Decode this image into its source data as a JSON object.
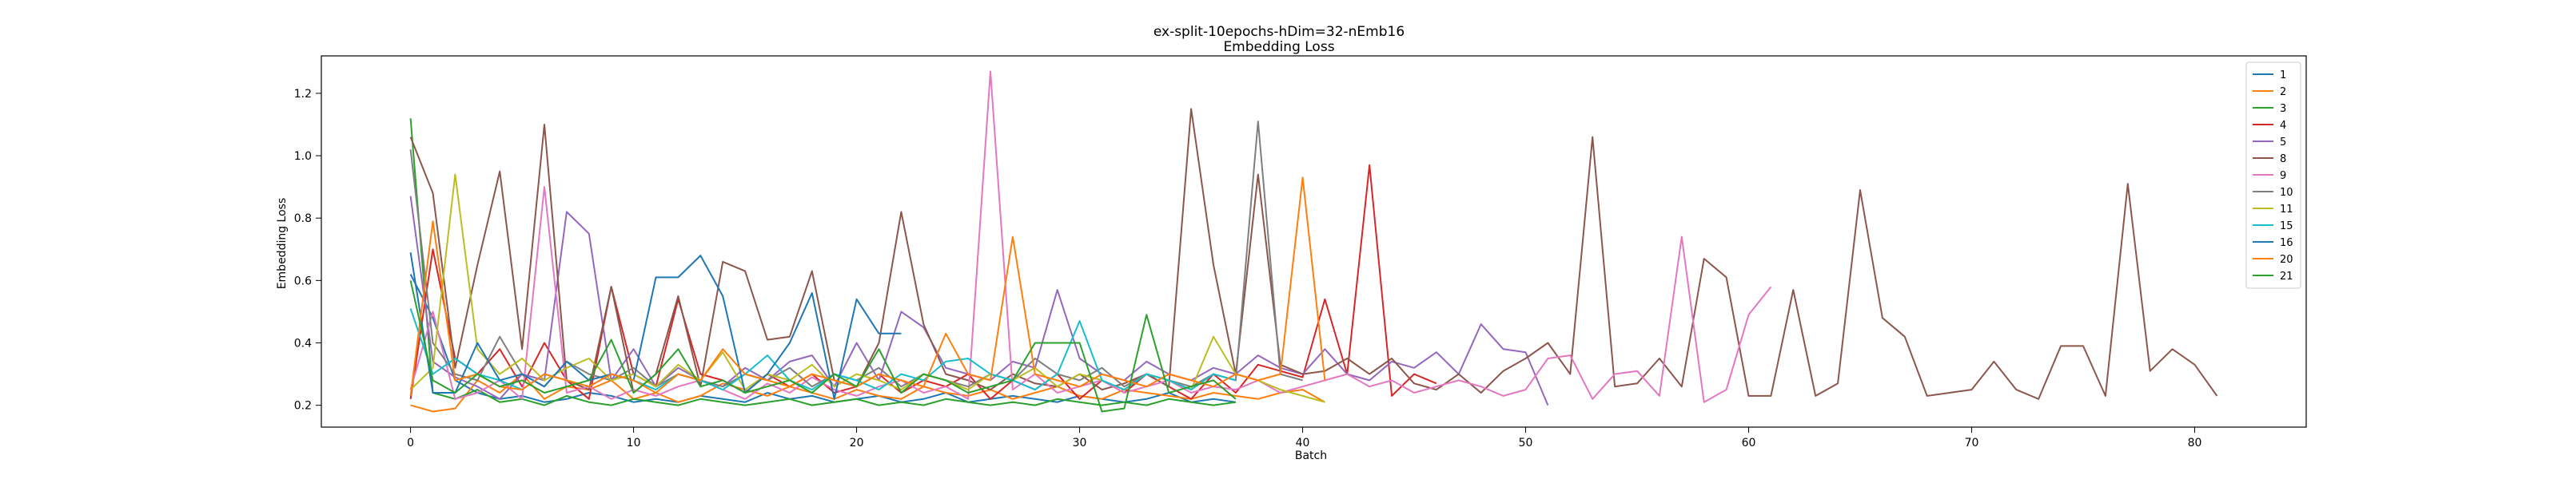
{
  "chart_data": {
    "type": "line",
    "title": "ex-split-10epochs-hDim=32-nEmb16",
    "subtitle": "Embedding Loss",
    "xlabel": "Batch",
    "ylabel": "Embedding Loss",
    "xlim": [
      -4,
      85
    ],
    "ylim": [
      0.13,
      1.32
    ],
    "xticks": [
      0,
      10,
      20,
      30,
      40,
      50,
      60,
      70,
      80
    ],
    "yticks": [
      0.2,
      0.4,
      0.6,
      0.8,
      1.0,
      1.2
    ],
    "ytick_labels": [
      "0.2",
      "0.4",
      "0.6",
      "0.8",
      "1.0",
      "1.2"
    ],
    "grid": false,
    "legend_position": "top-right",
    "series": [
      {
        "name": "1",
        "color": "#1f77b4",
        "values": [
          0.62,
          0.48,
          0.28,
          0.24,
          0.22,
          0.23,
          0.21,
          0.22,
          0.24,
          0.23,
          0.21,
          0.22,
          0.21,
          0.23,
          0.22,
          0.21,
          0.24,
          0.22,
          0.23,
          0.21,
          0.22,
          0.23,
          0.21,
          0.22,
          0.24,
          0.21,
          0.22,
          0.23,
          0.22,
          0.21,
          0.23,
          0.22,
          0.21,
          0.22,
          0.24,
          0.21,
          0.22,
          0.21
        ]
      },
      {
        "name": "2",
        "color": "#ff7f0e",
        "values": [
          0.2,
          0.18,
          0.19,
          0.28,
          0.24,
          0.3,
          0.22,
          0.26,
          0.25,
          0.28,
          0.22,
          0.24,
          0.21,
          0.23,
          0.27,
          0.25,
          0.23,
          0.26,
          0.24,
          0.22,
          0.25,
          0.23,
          0.22,
          0.26,
          0.24,
          0.23,
          0.25,
          0.22,
          0.24,
          0.26,
          0.23,
          0.22,
          0.25,
          0.24,
          0.23,
          0.22,
          0.24,
          0.23,
          0.22,
          0.24,
          0.25,
          0.21
        ]
      },
      {
        "name": "3",
        "color": "#2ca02c",
        "values": [
          1.12,
          0.24,
          0.22,
          0.25,
          0.21,
          0.22,
          0.2,
          0.23,
          0.21,
          0.2,
          0.22,
          0.21,
          0.2,
          0.22,
          0.21,
          0.2,
          0.21,
          0.22,
          0.2,
          0.21,
          0.22,
          0.2,
          0.21,
          0.2,
          0.22,
          0.21,
          0.2,
          0.21,
          0.2,
          0.22,
          0.21,
          0.2,
          0.21,
          0.2,
          0.22,
          0.21,
          0.2,
          0.21
        ]
      },
      {
        "name": "4",
        "color": "#d62728",
        "values": [
          0.22,
          0.7,
          0.35,
          0.3,
          0.38,
          0.26,
          0.4,
          0.28,
          0.22,
          0.58,
          0.3,
          0.26,
          0.54,
          0.3,
          0.28,
          0.24,
          0.3,
          0.26,
          0.3,
          0.24,
          0.26,
          0.3,
          0.24,
          0.28,
          0.26,
          0.3,
          0.22,
          0.28,
          0.25,
          0.3,
          0.22,
          0.28,
          0.24,
          0.3,
          0.26,
          0.22,
          0.3,
          0.24,
          0.33,
          0.31,
          0.29,
          0.54,
          0.3,
          0.97,
          0.23,
          0.3,
          0.27
        ]
      },
      {
        "name": "5",
        "color": "#9467bd",
        "values": [
          0.87,
          0.34,
          0.29,
          0.26,
          0.22,
          0.3,
          0.28,
          0.82,
          0.75,
          0.28,
          0.38,
          0.26,
          0.32,
          0.28,
          0.26,
          0.32,
          0.28,
          0.34,
          0.36,
          0.26,
          0.4,
          0.28,
          0.5,
          0.45,
          0.32,
          0.3,
          0.28,
          0.34,
          0.32,
          0.57,
          0.35,
          0.3,
          0.28,
          0.34,
          0.3,
          0.28,
          0.32,
          0.3,
          0.36,
          0.32,
          0.3,
          0.38,
          0.3,
          0.28,
          0.34,
          0.32,
          0.37,
          0.3,
          0.46,
          0.38,
          0.37,
          0.2
        ]
      },
      {
        "name": "8",
        "color": "#8c564b",
        "values": [
          1.06,
          0.88,
          0.32,
          0.65,
          0.95,
          0.38,
          1.1,
          0.28,
          0.25,
          0.58,
          0.24,
          0.3,
          0.55,
          0.26,
          0.66,
          0.63,
          0.41,
          0.42,
          0.63,
          0.28,
          0.26,
          0.4,
          0.82,
          0.46,
          0.3,
          0.28,
          0.25,
          0.3,
          0.27,
          0.26,
          0.3,
          0.25,
          0.27,
          0.3,
          0.26,
          1.15,
          0.65,
          0.3,
          0.94,
          0.33,
          0.3,
          0.31,
          0.35,
          0.3,
          0.35,
          0.27,
          0.25,
          0.3,
          0.24,
          0.31,
          0.35,
          0.4,
          0.3,
          1.06,
          0.26,
          0.27,
          0.35,
          0.26,
          0.67,
          0.61,
          0.23,
          0.23,
          0.57,
          0.23,
          0.27,
          0.89,
          0.48,
          0.42,
          0.23,
          0.24,
          0.25,
          0.34,
          0.25,
          0.22,
          0.39,
          0.39,
          0.23,
          0.91,
          0.31,
          0.38,
          0.33,
          0.23
        ]
      },
      {
        "name": "9",
        "color": "#e377c2",
        "values": [
          0.25,
          0.5,
          0.22,
          0.24,
          0.28,
          0.22,
          0.9,
          0.24,
          0.26,
          0.22,
          0.25,
          0.23,
          0.26,
          0.28,
          0.25,
          0.22,
          0.27,
          0.24,
          0.29,
          0.25,
          0.23,
          0.26,
          0.28,
          0.24,
          0.26,
          0.22,
          1.27,
          0.25,
          0.3,
          0.24,
          0.26,
          0.28,
          0.24,
          0.26,
          0.28,
          0.24,
          0.26,
          0.25,
          0.28,
          0.24,
          0.26,
          0.28,
          0.3,
          0.26,
          0.28,
          0.24,
          0.26,
          0.28,
          0.26,
          0.23,
          0.25,
          0.35,
          0.36,
          0.22,
          0.3,
          0.31,
          0.23,
          0.74,
          0.21,
          0.25,
          0.49,
          0.58
        ]
      },
      {
        "name": "10",
        "color": "#7f7f7f",
        "values": [
          1.02,
          0.4,
          0.3,
          0.28,
          0.42,
          0.3,
          0.26,
          0.34,
          0.3,
          0.28,
          0.32,
          0.26,
          0.3,
          0.28,
          0.26,
          0.3,
          0.28,
          0.32,
          0.26,
          0.3,
          0.28,
          0.32,
          0.26,
          0.3,
          0.28,
          0.26,
          0.3,
          0.28,
          0.35,
          0.3,
          0.28,
          0.32,
          0.26,
          0.3,
          0.28,
          0.26,
          0.3,
          0.28,
          1.11,
          0.3,
          0.28
        ]
      },
      {
        "name": "11",
        "color": "#bcbd22",
        "values": [
          0.25,
          0.32,
          0.94,
          0.38,
          0.3,
          0.35,
          0.28,
          0.32,
          0.35,
          0.28,
          0.3,
          0.26,
          0.33,
          0.28,
          0.37,
          0.25,
          0.3,
          0.28,
          0.33,
          0.26,
          0.3,
          0.28,
          0.25,
          0.3,
          0.28,
          0.25,
          0.3,
          0.28,
          0.32,
          0.26,
          0.3,
          0.28,
          0.25,
          0.3,
          0.28,
          0.25,
          0.42,
          0.3,
          0.28,
          0.25,
          0.23,
          0.21
        ]
      },
      {
        "name": "15",
        "color": "#17becf",
        "values": [
          0.51,
          0.3,
          0.35,
          0.3,
          0.28,
          0.25,
          0.3,
          0.28,
          0.26,
          0.3,
          0.28,
          0.25,
          0.3,
          0.28,
          0.25,
          0.3,
          0.36,
          0.28,
          0.25,
          0.3,
          0.28,
          0.25,
          0.3,
          0.28,
          0.34,
          0.35,
          0.3,
          0.28,
          0.25,
          0.3,
          0.47,
          0.28,
          0.25,
          0.3,
          0.28,
          0.25,
          0.3,
          0.28
        ]
      },
      {
        "name": "16",
        "color": "#1f77b4",
        "values": [
          0.69,
          0.24,
          0.24,
          0.4,
          0.28,
          0.3,
          0.26,
          0.34,
          0.28,
          0.3,
          0.28,
          0.61,
          0.61,
          0.68,
          0.55,
          0.24,
          0.3,
          0.4,
          0.56,
          0.22,
          0.54,
          0.43,
          0.43
        ]
      },
      {
        "name": "20",
        "color": "#ff7f0e",
        "values": [
          0.23,
          0.79,
          0.28,
          0.3,
          0.26,
          0.25,
          0.3,
          0.28,
          0.26,
          0.3,
          0.28,
          0.24,
          0.3,
          0.28,
          0.38,
          0.3,
          0.28,
          0.26,
          0.3,
          0.28,
          0.26,
          0.3,
          0.28,
          0.26,
          0.43,
          0.3,
          0.28,
          0.74,
          0.3,
          0.28,
          0.26,
          0.3,
          0.28,
          0.26,
          0.3,
          0.28,
          0.26,
          0.3,
          0.28,
          0.3,
          0.93,
          0.28
        ]
      },
      {
        "name": "21",
        "color": "#2ca02c",
        "values": [
          0.6,
          0.28,
          0.24,
          0.3,
          0.26,
          0.28,
          0.24,
          0.26,
          0.28,
          0.41,
          0.24,
          0.3,
          0.38,
          0.26,
          0.28,
          0.24,
          0.26,
          0.28,
          0.24,
          0.3,
          0.26,
          0.38,
          0.24,
          0.3,
          0.28,
          0.24,
          0.26,
          0.28,
          0.4,
          0.4,
          0.4,
          0.18,
          0.19,
          0.49,
          0.24,
          0.26,
          0.28,
          0.22
        ]
      }
    ]
  }
}
